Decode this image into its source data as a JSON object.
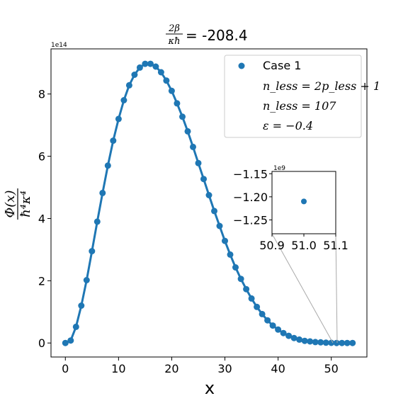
{
  "chart_data": {
    "type": "line",
    "title": "= -208.4",
    "title_fraction": {
      "numerator": "2β",
      "denominator": "κħ"
    },
    "xlabel": "x",
    "ylabel_fraction": {
      "numerator": "Φ(x)",
      "denominator": "ħ⁴κ⁴"
    },
    "y_multiplier": "1e14",
    "xlim": [
      -2.7,
      56.7
    ],
    "ylim": [
      -0.45,
      9.45
    ],
    "xticks": [
      "0",
      "10",
      "20",
      "30",
      "40",
      "50"
    ],
    "yticks": [
      "0",
      "2",
      "4",
      "6",
      "8"
    ],
    "color": "#1f77b4",
    "grid": false,
    "legend_position": "top-right",
    "series": [
      {
        "name": "Case 1",
        "x": [
          0,
          1,
          2,
          3,
          4,
          5,
          6,
          7,
          8,
          9,
          10,
          11,
          12,
          13,
          14,
          15,
          16,
          17,
          18,
          19,
          20,
          21,
          22,
          23,
          24,
          25,
          26,
          27,
          28,
          29,
          30,
          31,
          32,
          33,
          34,
          35,
          36,
          37,
          38,
          39,
          40,
          41,
          42,
          43,
          44,
          45,
          46,
          47,
          48,
          49,
          50,
          51,
          52,
          53,
          54
        ],
        "y": [
          0,
          0.08,
          0.52,
          1.2,
          2.02,
          2.95,
          3.9,
          4.82,
          5.7,
          6.5,
          7.2,
          7.8,
          8.28,
          8.62,
          8.85,
          8.97,
          8.97,
          8.88,
          8.7,
          8.43,
          8.1,
          7.7,
          7.27,
          6.8,
          6.3,
          5.78,
          5.27,
          4.75,
          4.24,
          3.76,
          3.28,
          2.84,
          2.43,
          2.06,
          1.73,
          1.43,
          1.16,
          0.93,
          0.73,
          0.56,
          0.43,
          0.32,
          0.23,
          0.16,
          0.11,
          0.07,
          0.05,
          0.03,
          0.02,
          0.01,
          0.005,
          0,
          0,
          0,
          0
        ]
      }
    ],
    "legend": {
      "series_label": "Case 1",
      "lines": [
        "n_less = 2p_less + 1",
        "n_less = 107",
        "ε = −0.4"
      ]
    },
    "inset": {
      "x_multiplier_note": "",
      "y_multiplier": "1e9",
      "xlim": [
        50.9,
        51.1
      ],
      "ylim": [
        -1.28,
        -1.145
      ],
      "xticks": [
        "50.9",
        "51.0",
        "51.1"
      ],
      "yticks": [
        "−1.15",
        "−1.20",
        "−1.25"
      ],
      "points": [
        {
          "x": 51.0,
          "y": -1.21
        }
      ]
    }
  }
}
